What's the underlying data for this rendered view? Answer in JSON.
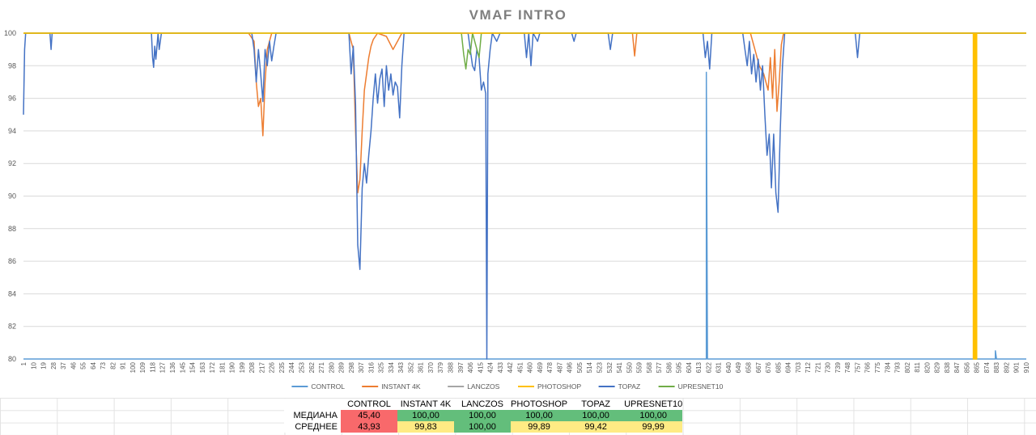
{
  "chart_data": {
    "type": "line",
    "title": "VMAF INTRO",
    "xlabel": "",
    "ylabel": "",
    "xlim": [
      1,
      910
    ],
    "ylim": [
      80,
      100
    ],
    "y_ticks": [
      80,
      82,
      84,
      86,
      88,
      90,
      92,
      94,
      96,
      98,
      100
    ],
    "x_tick_labels": [
      "1",
      "10",
      "19",
      "28",
      "37",
      "46",
      "55",
      "64",
      "73",
      "82",
      "91",
      "100",
      "109",
      "118",
      "127",
      "136",
      "145",
      "154",
      "163",
      "172",
      "181",
      "190",
      "199",
      "208",
      "217",
      "226",
      "235",
      "244",
      "253",
      "262",
      "271",
      "280",
      "289",
      "298",
      "307",
      "316",
      "325",
      "334",
      "343",
      "352",
      "361",
      "370",
      "379",
      "388",
      "397",
      "406",
      "415",
      "424",
      "433",
      "442",
      "451",
      "460",
      "469",
      "478",
      "487",
      "496",
      "505",
      "514",
      "523",
      "532",
      "541",
      "550",
      "559",
      "568",
      "577",
      "586",
      "595",
      "604",
      "613",
      "622",
      "631",
      "640",
      "649",
      "658",
      "667",
      "676",
      "685",
      "694",
      "703",
      "712",
      "721",
      "730",
      "739",
      "748",
      "757",
      "766",
      "775",
      "784",
      "793",
      "802",
      "811",
      "820",
      "829",
      "838",
      "847",
      "856",
      "865",
      "874",
      "883",
      "892",
      "901",
      "910"
    ],
    "grid": true,
    "legend_position": "bottom",
    "series": [
      {
        "name": "CONTROL",
        "color": "#5b9bd5",
        "points": [
          [
            1,
            80
          ],
          [
            620,
            80
          ],
          [
            620,
            97.6
          ],
          [
            621,
            80
          ],
          [
            882,
            80
          ],
          [
            882,
            80.5
          ],
          [
            883,
            80
          ],
          [
            910,
            80
          ]
        ]
      },
      {
        "name": "INSTANT 4K",
        "color": "#ed7d31",
        "points": [
          [
            1,
            100
          ],
          [
            205,
            100
          ],
          [
            210,
            99.5
          ],
          [
            212,
            97
          ],
          [
            214,
            95.5
          ],
          [
            216,
            96
          ],
          [
            218,
            93.7
          ],
          [
            220,
            97
          ],
          [
            222,
            99
          ],
          [
            226,
            100
          ],
          [
            296,
            100
          ],
          [
            300,
            99
          ],
          [
            302,
            94
          ],
          [
            304,
            90.2
          ],
          [
            306,
            91
          ],
          [
            308,
            94
          ],
          [
            310,
            96.5
          ],
          [
            312,
            97.5
          ],
          [
            314,
            98.5
          ],
          [
            316,
            99.2
          ],
          [
            318,
            99.6
          ],
          [
            322,
            100
          ],
          [
            330,
            99.8
          ],
          [
            336,
            99
          ],
          [
            340,
            99.5
          ],
          [
            344,
            100
          ],
          [
            553,
            100
          ],
          [
            555,
            98.6
          ],
          [
            557,
            100
          ],
          [
            660,
            100
          ],
          [
            664,
            99
          ],
          [
            668,
            98
          ],
          [
            672,
            97.5
          ],
          [
            676,
            96.5
          ],
          [
            678,
            98.5
          ],
          [
            680,
            96
          ],
          [
            682,
            99
          ],
          [
            684,
            95.2
          ],
          [
            686,
            97
          ],
          [
            688,
            99.3
          ],
          [
            690,
            100
          ],
          [
            910,
            100
          ]
        ]
      },
      {
        "name": "LANCZOS",
        "color": "#a5a5a5",
        "points": [
          [
            1,
            100
          ],
          [
            910,
            100
          ]
        ]
      },
      {
        "name": "PHOTOSHOP",
        "color": "#ffc000",
        "points": [
          [
            1,
            100
          ],
          [
            862,
            100
          ],
          [
            862,
            80
          ],
          [
            863,
            80
          ],
          [
            863,
            100
          ],
          [
            864,
            100
          ],
          [
            864,
            80
          ],
          [
            865,
            80
          ],
          [
            865,
            100
          ],
          [
            910,
            100
          ]
        ]
      },
      {
        "name": "TOPAZ",
        "color": "#4472c4",
        "points": [
          [
            1,
            95
          ],
          [
            2,
            99
          ],
          [
            3,
            100
          ],
          [
            25,
            100
          ],
          [
            26,
            99
          ],
          [
            27,
            100
          ],
          [
            117,
            100
          ],
          [
            118,
            98.5
          ],
          [
            119,
            97.9
          ],
          [
            120,
            99.2
          ],
          [
            121,
            98.4
          ],
          [
            123,
            100
          ],
          [
            124,
            99
          ],
          [
            126,
            100
          ],
          [
            208,
            100
          ],
          [
            210,
            99
          ],
          [
            212,
            97
          ],
          [
            214,
            99
          ],
          [
            216,
            97.5
          ],
          [
            218,
            95.8
          ],
          [
            220,
            99
          ],
          [
            222,
            98
          ],
          [
            224,
            99.5
          ],
          [
            226,
            98.3
          ],
          [
            228,
            99.2
          ],
          [
            230,
            100
          ],
          [
            296,
            100
          ],
          [
            298,
            97.5
          ],
          [
            300,
            99.2
          ],
          [
            302,
            95.6
          ],
          [
            304,
            87
          ],
          [
            306,
            85.5
          ],
          [
            308,
            90.5
          ],
          [
            310,
            92
          ],
          [
            312,
            90.8
          ],
          [
            314,
            92.5
          ],
          [
            316,
            94
          ],
          [
            318,
            96
          ],
          [
            320,
            97.5
          ],
          [
            322,
            95.7
          ],
          [
            324,
            97.2
          ],
          [
            326,
            97.8
          ],
          [
            328,
            95.5
          ],
          [
            330,
            98
          ],
          [
            332,
            96.5
          ],
          [
            334,
            97.5
          ],
          [
            336,
            96.2
          ],
          [
            338,
            97
          ],
          [
            340,
            96.7
          ],
          [
            342,
            94.8
          ],
          [
            344,
            98
          ],
          [
            346,
            100
          ],
          [
            404,
            100
          ],
          [
            406,
            99
          ],
          [
            408,
            98
          ],
          [
            410,
            97.7
          ],
          [
            412,
            99
          ],
          [
            414,
            98.5
          ],
          [
            416,
            96.5
          ],
          [
            418,
            97
          ],
          [
            420,
            96.3
          ],
          [
            421,
            80
          ],
          [
            422,
            97.5
          ],
          [
            424,
            99
          ],
          [
            426,
            100
          ],
          [
            430,
            99.5
          ],
          [
            433,
            100
          ],
          [
            455,
            100
          ],
          [
            457,
            98.5
          ],
          [
            459,
            100
          ],
          [
            461,
            98
          ],
          [
            463,
            100
          ],
          [
            467,
            99.5
          ],
          [
            469,
            100
          ],
          [
            498,
            100
          ],
          [
            500,
            99.5
          ],
          [
            502,
            100
          ],
          [
            531,
            100
          ],
          [
            533,
            99
          ],
          [
            535,
            100
          ],
          [
            617,
            100
          ],
          [
            619,
            98.5
          ],
          [
            621,
            99.5
          ],
          [
            623,
            97.8
          ],
          [
            625,
            100
          ],
          [
            653,
            100
          ],
          [
            655,
            99
          ],
          [
            657,
            98
          ],
          [
            659,
            99.5
          ],
          [
            661,
            97.5
          ],
          [
            663,
            98.7
          ],
          [
            665,
            97
          ],
          [
            667,
            98.4
          ],
          [
            669,
            96.5
          ],
          [
            671,
            98
          ],
          [
            673,
            95
          ],
          [
            675,
            92.5
          ],
          [
            677,
            93.8
          ],
          [
            679,
            90.5
          ],
          [
            681,
            93.8
          ],
          [
            683,
            90.2
          ],
          [
            685,
            89
          ],
          [
            687,
            94
          ],
          [
            689,
            98
          ],
          [
            691,
            100
          ],
          [
            755,
            100
          ],
          [
            757,
            98.5
          ],
          [
            759,
            100
          ],
          [
            910,
            100
          ]
        ]
      },
      {
        "name": "UPRESNET10",
        "color": "#70ad47",
        "points": [
          [
            1,
            100
          ],
          [
            398,
            100
          ],
          [
            400,
            98.7
          ],
          [
            402,
            97.8
          ],
          [
            404,
            99
          ],
          [
            406,
            98.7
          ],
          [
            408,
            100
          ],
          [
            414,
            98.5
          ],
          [
            416,
            100
          ],
          [
            910,
            100
          ]
        ]
      }
    ]
  },
  "summary_table": {
    "headers": [
      "CONTROL",
      "INSTANT 4K",
      "LANCZOS",
      "PHOTOSHOP",
      "TOPAZ",
      "UPRESNET10"
    ],
    "rows": [
      {
        "label": "МЕДИАНА",
        "values": [
          "45,40",
          "100,00",
          "100,00",
          "100,00",
          "100,00",
          "100,00"
        ],
        "colors": [
          "#f8696b",
          "#63be7b",
          "#63be7b",
          "#63be7b",
          "#63be7b",
          "#63be7b"
        ]
      },
      {
        "label": "СРЕДНЕЕ",
        "values": [
          "43,93",
          "99,83",
          "100,00",
          "99,89",
          "99,42",
          "99,99"
        ],
        "colors": [
          "#f8696b",
          "#ffeb84",
          "#63be7b",
          "#ffeb84",
          "#ffeb84",
          "#ffeb84"
        ]
      }
    ]
  }
}
